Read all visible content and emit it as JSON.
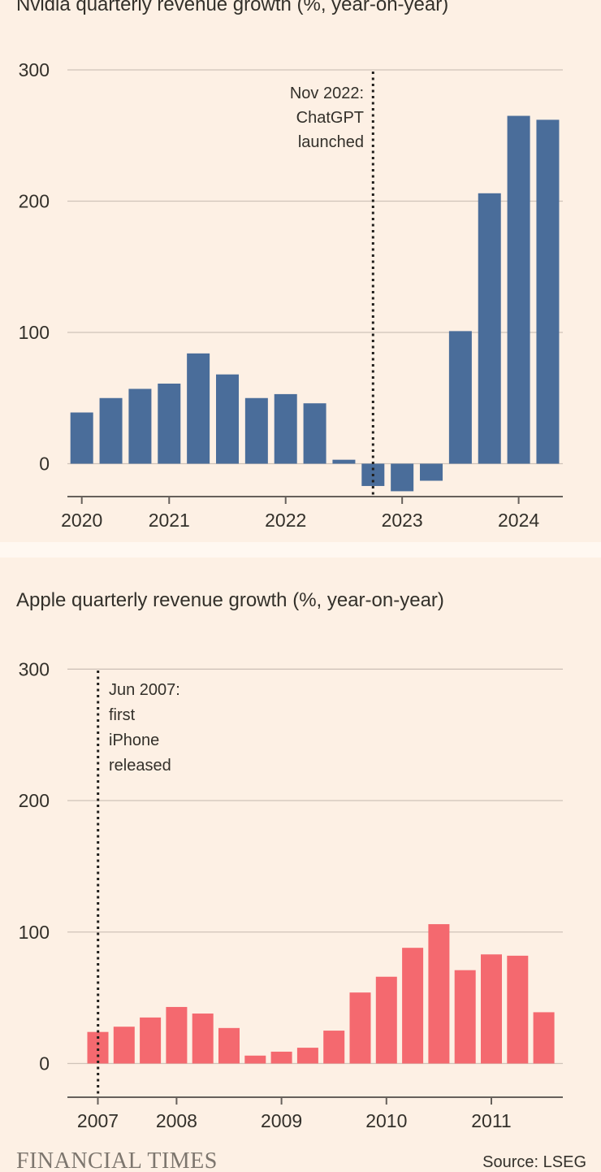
{
  "page": {
    "background": "#fdf0e4",
    "separator_color": "#fff8f1",
    "text_color": "#33302a",
    "grid_color": "#cfc3b9",
    "axis_color": "#66605b",
    "annotation_line_color": "#1f1d1a"
  },
  "chart_data": [
    {
      "type": "bar",
      "title": "Nvidia quarterly revenue growth (%, year-on-year)",
      "xlabel": "",
      "ylabel": "%, year-on-year",
      "values": [
        39,
        50,
        57,
        61,
        84,
        68,
        50,
        53,
        46,
        3,
        -17,
        -21,
        -13,
        101,
        206,
        265,
        262
      ],
      "x_unit": "quarter",
      "bar_color": "#4a6d9a",
      "yticks": [
        0,
        100,
        200,
        300
      ],
      "ylim": [
        -30,
        300
      ],
      "x_tick_labels": [
        "2020",
        "2021",
        "2022",
        "2023",
        "2024"
      ],
      "x_tick_bar_indices": [
        0,
        3,
        7,
        11,
        15
      ],
      "grid": true,
      "legend_position": "none",
      "annotation": {
        "lines": [
          "Nov 2022:",
          "ChatGPT",
          "launched"
        ],
        "line_at_bar_index": 10,
        "text_side": "left"
      }
    },
    {
      "type": "bar",
      "title": "Apple quarterly revenue growth (%, year-on-year)",
      "xlabel": "",
      "ylabel": "%, year-on-year",
      "values": [
        24,
        28,
        35,
        43,
        38,
        27,
        6,
        9,
        12,
        25,
        54,
        66,
        88,
        106,
        71,
        83,
        82,
        39
      ],
      "x_unit": "quarter",
      "bar_color": "#f4696f",
      "yticks": [
        0,
        100,
        200,
        300
      ],
      "ylim": [
        0,
        300
      ],
      "x_tick_labels": [
        "2007",
        "2008",
        "2009",
        "2010",
        "2011"
      ],
      "x_tick_bar_indices": [
        0,
        3,
        7,
        11,
        15
      ],
      "grid": true,
      "legend_position": "none",
      "annotation": {
        "lines": [
          "Jun 2007:",
          "first",
          "iPhone",
          "released"
        ],
        "line_at_bar_index": 0,
        "text_side": "right"
      }
    }
  ],
  "footer": {
    "brand": "FINANCIAL TIMES",
    "source": "Source: LSEG"
  }
}
